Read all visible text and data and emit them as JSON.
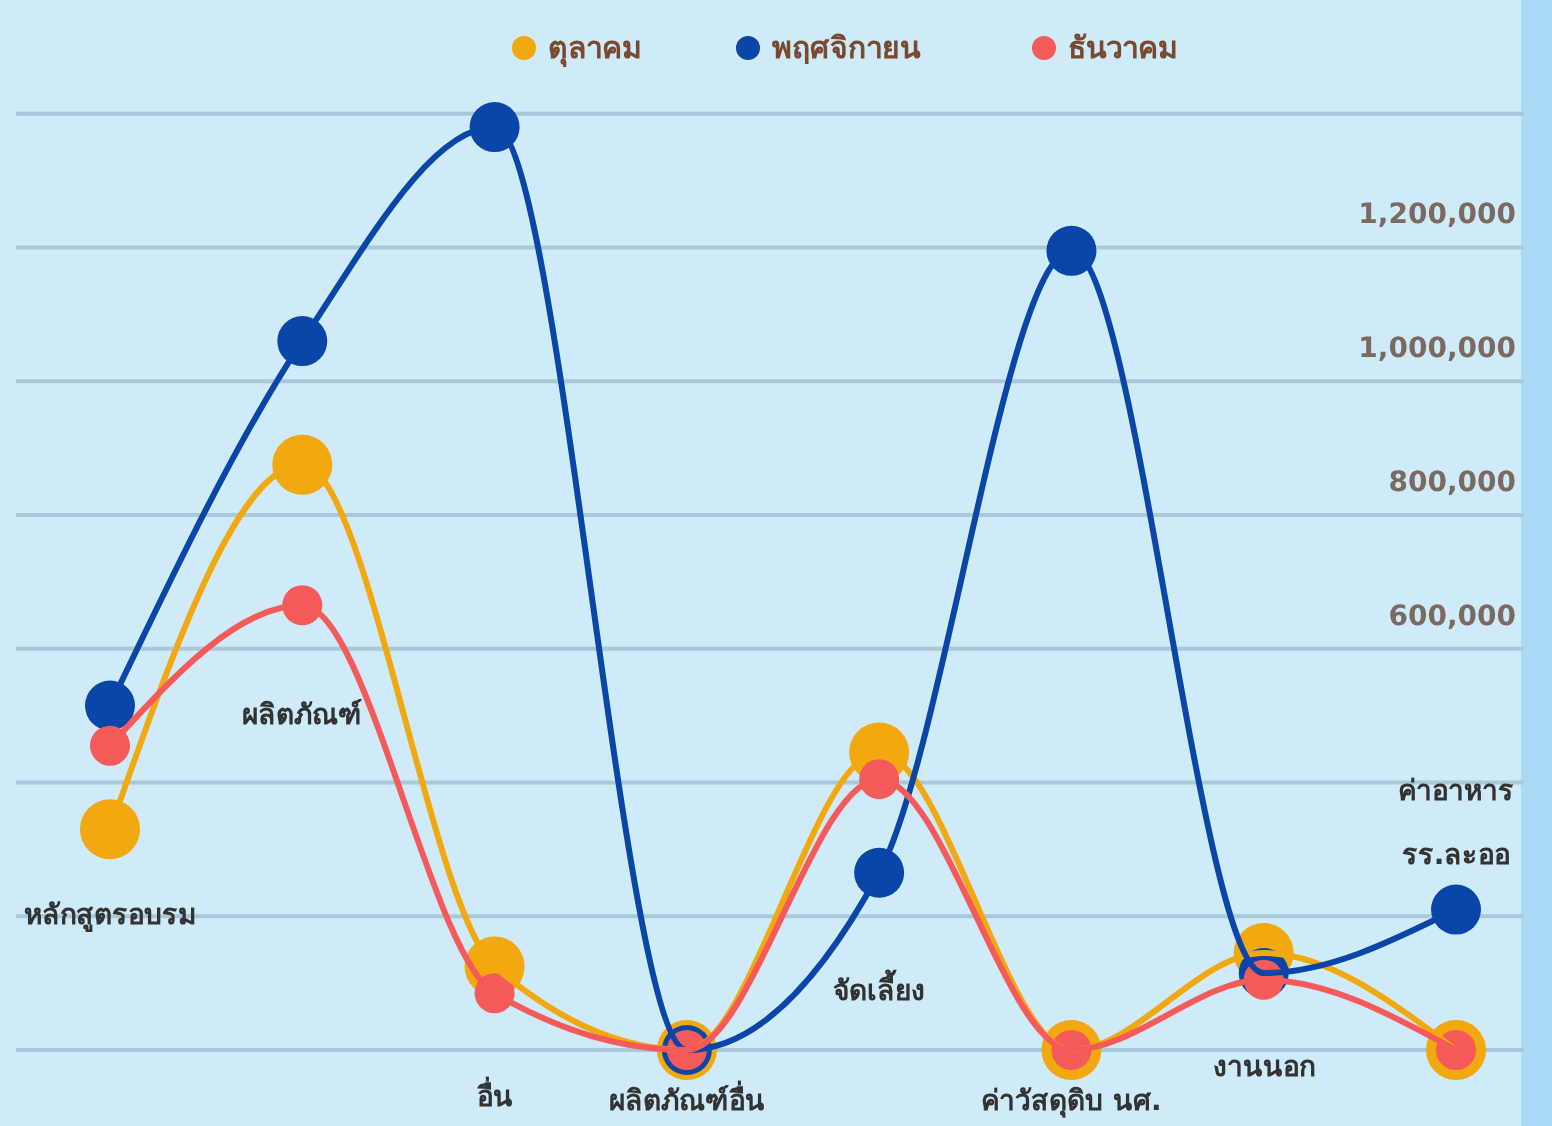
{
  "chart_data": {
    "type": "line",
    "categories": [
      "หลักสูตรอบรม",
      "ผลิตภัณฑ์",
      "อื่น",
      "ผลิตภัณฑ์อื่น",
      "จัดเลี้ยง",
      "ค่าวัสดุดิบ นศ.",
      "งานนอก",
      "ค่าอาหาร รร.ละออ"
    ],
    "series": [
      {
        "name": "ตุลาคม",
        "color": "#f2a80f",
        "values": [
          330000,
          875000,
          125000,
          0,
          445000,
          0,
          145000,
          0
        ]
      },
      {
        "name": "พฤศจิกายน",
        "color": "#0a46a8",
        "values": [
          515000,
          1060000,
          1380000,
          0,
          265000,
          1195000,
          115000,
          210000
        ]
      },
      {
        "name": "ธันวาคม",
        "color": "#f55a5a",
        "values": [
          455000,
          665000,
          85000,
          0,
          405000,
          0,
          105000,
          0
        ]
      }
    ],
    "ylim": [
      0,
      1570000
    ],
    "yticks": [
      {
        "value": 0,
        "label": null
      },
      {
        "value": 200000,
        "label": null
      },
      {
        "value": 400000,
        "label": null
      },
      {
        "value": 600000,
        "label": "600,000"
      },
      {
        "value": 800000,
        "label": "800,000"
      },
      {
        "value": 1000000,
        "label": "1,000,000"
      },
      {
        "value": 1200000,
        "label": "1,200,000"
      },
      {
        "value": 1400000,
        "label": null
      }
    ],
    "grid": "y",
    "legend": "top",
    "marker": "circle",
    "line_style": "solid"
  }
}
